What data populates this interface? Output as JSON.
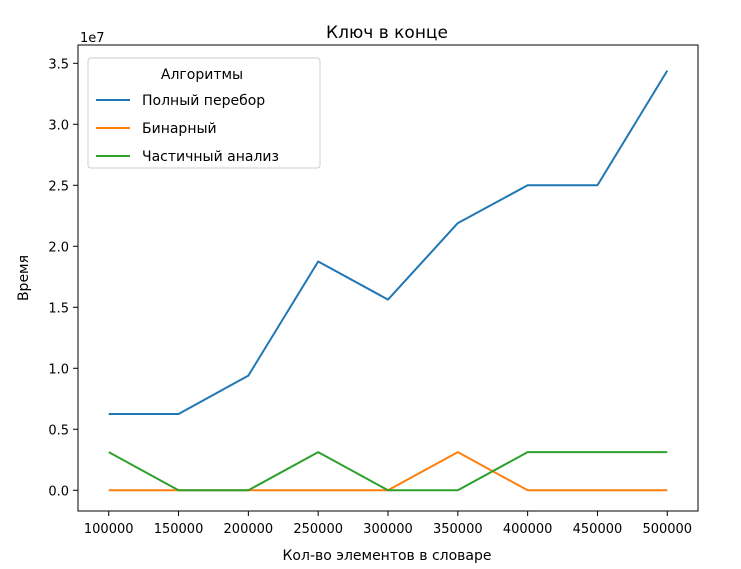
{
  "chart_data": {
    "type": "line",
    "title": "Ключ в конце",
    "xlabel": "Кол-во элементов в словаре",
    "ylabel": "Время",
    "y_multiplier": "1e7",
    "x": [
      100000,
      150000,
      200000,
      250000,
      300000,
      350000,
      400000,
      450000,
      500000
    ],
    "xticks": [
      "100000",
      "150000",
      "200000",
      "250000",
      "300000",
      "350000",
      "400000",
      "450000",
      "500000"
    ],
    "yticks": [
      "0.0",
      "0.5",
      "1.0",
      "1.5",
      "2.0",
      "2.5",
      "3.0",
      "3.5"
    ],
    "ytick_values": [
      0,
      0.5,
      1.0,
      1.5,
      2.0,
      2.5,
      3.0,
      3.5
    ],
    "xlim": [
      78000,
      522000
    ],
    "ylim": [
      -0.17,
      3.65
    ],
    "grid": false,
    "legend": {
      "title": "Алгоритмы",
      "placement": "top-left"
    },
    "series": [
      {
        "name": "Полный перебор",
        "color": "#1f77b4",
        "values": [
          0.625,
          0.625,
          0.94,
          1.875,
          1.563,
          2.19,
          2.5,
          2.5,
          3.44
        ]
      },
      {
        "name": "Бинарный",
        "color": "#ff7f0e",
        "values": [
          0,
          0,
          0,
          0,
          0,
          0.3125,
          0,
          0,
          0
        ]
      },
      {
        "name": "Частичный анализ",
        "color": "#2ca02c",
        "values": [
          0.3125,
          0,
          0,
          0.3125,
          0,
          0,
          0.3125,
          0.3125,
          0.3125
        ]
      }
    ]
  }
}
